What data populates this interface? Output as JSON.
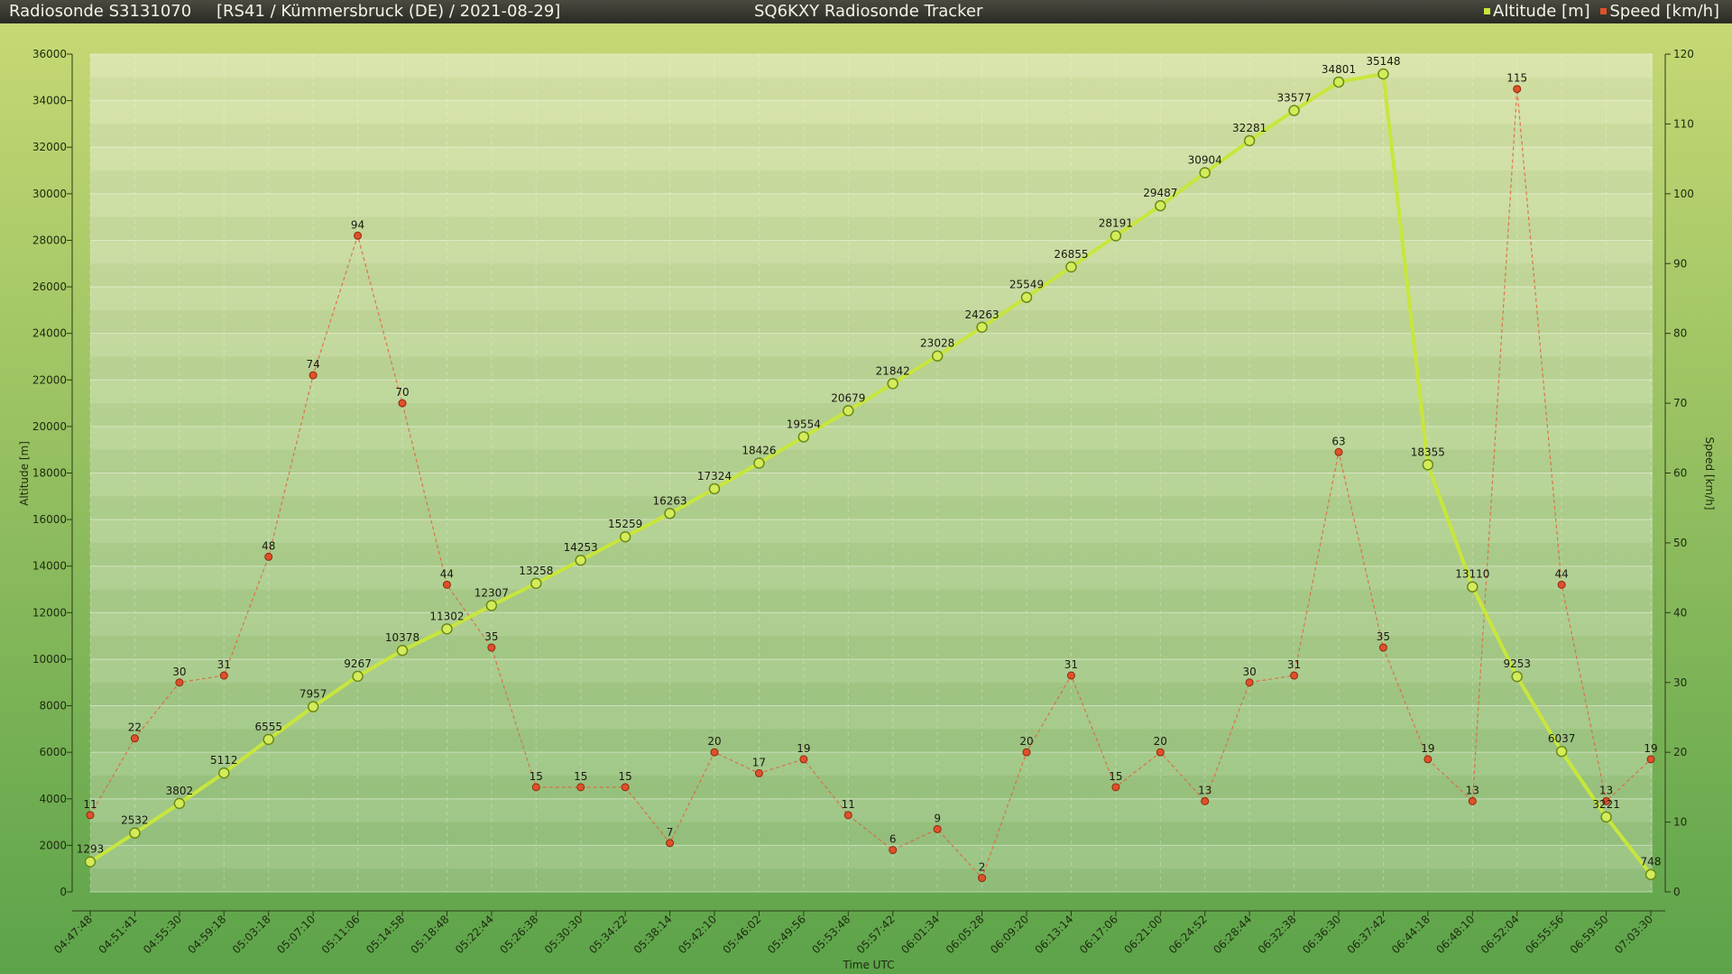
{
  "header": {
    "sonde": "Radiosonde S3131070",
    "flight": "[RS41 / Kümmersbruck (DE) / 2021-08-29]",
    "tracker": "SQ6KXY Radiosonde Tracker",
    "legend": [
      {
        "label": "Altitude [m]",
        "color": "#c8e63c"
      },
      {
        "label": "Speed [km/h]",
        "color": "#e0502a"
      }
    ]
  },
  "chart_data": {
    "type": "line",
    "xlabel": "Time UTC",
    "ylabel": "Altitude [m]",
    "y2label": "Speed [km/h]",
    "ylim": [
      0,
      36000
    ],
    "y2lim": [
      0,
      120
    ],
    "yticks": [
      "0",
      "2000",
      "4000",
      "6000",
      "8000",
      "10000",
      "12000",
      "14000",
      "16000",
      "18000",
      "20000",
      "22000",
      "24000",
      "26000",
      "28000",
      "30000",
      "32000",
      "34000",
      "36000"
    ],
    "y2ticks": [
      "0",
      "10",
      "20",
      "30",
      "40",
      "50",
      "60",
      "70",
      "80",
      "90",
      "100",
      "110",
      "120"
    ],
    "categories": [
      "04:47:48",
      "04:51:41",
      "04:55:30",
      "04:59:18",
      "05:03:18",
      "05:07:10",
      "05:11:06",
      "05:14:58",
      "05:18:48",
      "05:22:44",
      "05:26:38",
      "05:30:30",
      "05:34:22",
      "05:38:14",
      "05:42:10",
      "05:46:02",
      "05:49:56",
      "05:53:48",
      "05:57:42",
      "06:01:34",
      "06:05:28",
      "06:09:20",
      "06:13:14",
      "06:17:06",
      "06:21:00",
      "06:24:52",
      "06:28:44",
      "06:32:38",
      "06:36:30",
      "06:37:42",
      "06:44:18",
      "06:48:10",
      "06:52:04",
      "06:55:56",
      "06:59:50",
      "07:03:30"
    ],
    "series": [
      {
        "name": "Altitude [m]",
        "axis": "left",
        "color": "#c8e63c",
        "values": [
          1293,
          2532,
          3802,
          5112,
          6555,
          7957,
          9267,
          10378,
          11302,
          12307,
          13258,
          14253,
          15259,
          16263,
          17324,
          18426,
          19554,
          20679,
          21842,
          23028,
          24263,
          25549,
          26855,
          28191,
          29487,
          30904,
          32281,
          33577,
          34801,
          35148,
          18355,
          13110,
          9253,
          6037,
          3221,
          748
        ]
      },
      {
        "name": "Speed [km/h]",
        "axis": "right",
        "color": "#e0502a",
        "values": [
          11,
          22,
          30,
          31,
          48,
          74,
          94,
          70,
          44,
          35,
          15,
          15,
          15,
          7,
          20,
          17,
          19,
          11,
          6,
          9,
          2,
          20,
          31,
          15,
          20,
          13,
          30,
          31,
          63,
          35,
          19,
          13,
          115,
          44,
          13,
          19
        ]
      }
    ]
  }
}
